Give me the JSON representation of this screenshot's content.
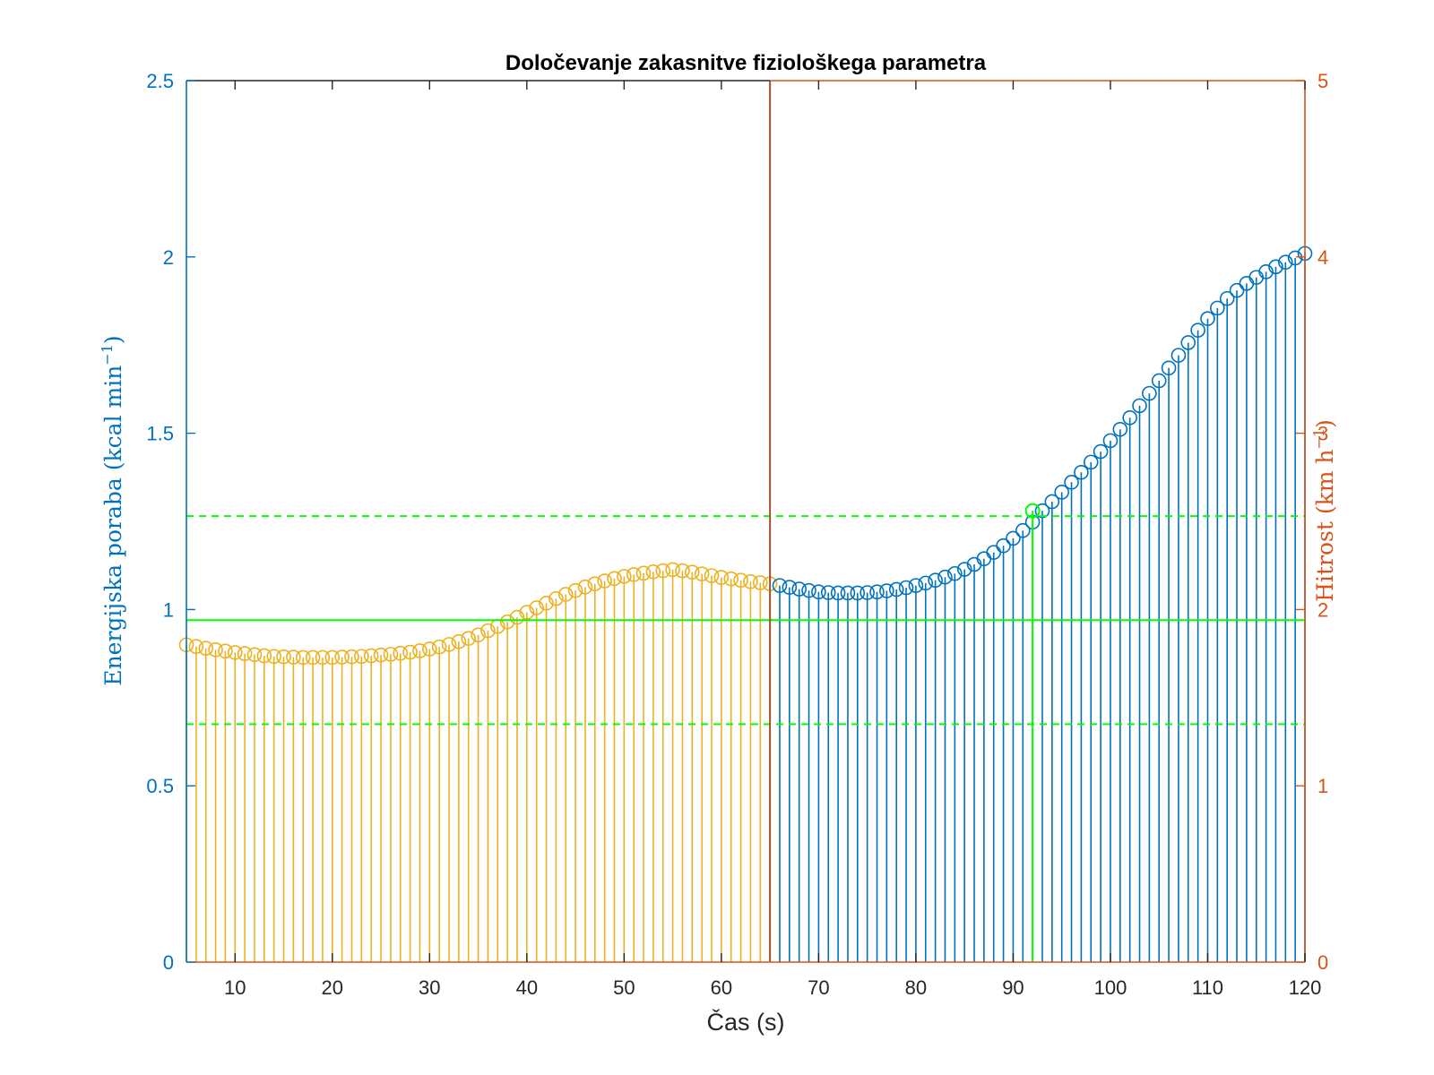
{
  "chart_data": {
    "type": "stem",
    "title": "Določevanje zakasnitve fiziološkega parametra",
    "xlabel": "Čas (s)",
    "ylabel_left": "Energijska poraba (kcal min",
    "ylabel_left_sup": "−1",
    "ylabel_left_close": ")",
    "ylabel_right": "Hitrost (km h",
    "ylabel_right_sup": "−1",
    "ylabel_right_close": ")",
    "xlim": [
      5,
      120
    ],
    "ylim_left": [
      0,
      2.5
    ],
    "ylim_right": [
      0,
      5
    ],
    "x_ticks": [
      10,
      20,
      30,
      40,
      50,
      60,
      70,
      80,
      90,
      100,
      110,
      120
    ],
    "x_tick_labels": [
      "10",
      "20",
      "30",
      "40",
      "50",
      "60",
      "70",
      "80",
      "90",
      "100",
      "110",
      "120"
    ],
    "y_left_ticks": [
      0,
      0.5,
      1,
      1.5,
      2,
      2.5
    ],
    "y_left_tick_labels": [
      "0",
      "0.5",
      "1",
      "1.5",
      "2",
      "2.5"
    ],
    "y_right_ticks": [
      0,
      1,
      2,
      3,
      4,
      5
    ],
    "y_right_tick_labels": [
      "0",
      "1",
      "2",
      "3",
      "4",
      "5"
    ],
    "grid": false,
    "colors": {
      "left_axis": "#0072BD",
      "right_axis": "#D95319",
      "series_before": "#EDB120",
      "series_after": "#0072BD",
      "markers": "#00FF00",
      "divider": "#A0522D",
      "text": "#262626"
    },
    "split_x": 65,
    "series": [
      {
        "x": [
          5,
          6,
          7,
          8,
          9,
          10,
          11,
          12,
          13,
          14,
          15,
          16,
          17,
          18,
          19,
          20,
          21,
          22,
          23,
          24,
          25,
          26,
          27,
          28,
          29,
          30,
          31,
          32,
          33,
          34,
          35,
          36,
          37,
          38,
          39,
          40,
          41,
          42,
          43,
          44,
          45,
          46,
          47,
          48,
          49,
          50,
          51,
          52,
          53,
          54,
          55,
          56,
          57,
          58,
          59,
          60,
          61,
          62,
          63,
          64,
          65,
          66,
          67,
          68,
          69,
          70,
          71,
          72,
          73,
          74,
          75,
          76,
          77,
          78,
          79,
          80,
          81,
          82,
          83,
          84,
          85,
          86,
          87,
          88,
          89,
          90,
          91,
          92,
          93,
          94,
          95,
          96,
          97,
          98,
          99,
          100,
          101,
          102,
          103,
          104,
          105,
          106,
          107,
          108,
          109,
          110,
          111,
          112,
          113,
          114,
          115,
          116,
          117,
          118,
          119,
          120
        ],
        "y": [
          0.9,
          0.895,
          0.89,
          0.886,
          0.882,
          0.878,
          0.875,
          0.872,
          0.869,
          0.867,
          0.866,
          0.865,
          0.864,
          0.864,
          0.864,
          0.864,
          0.865,
          0.866,
          0.867,
          0.869,
          0.871,
          0.873,
          0.876,
          0.879,
          0.883,
          0.888,
          0.894,
          0.901,
          0.909,
          0.918,
          0.928,
          0.94,
          0.952,
          0.965,
          0.978,
          0.992,
          1.005,
          1.018,
          1.031,
          1.043,
          1.054,
          1.064,
          1.073,
          1.081,
          1.088,
          1.094,
          1.099,
          1.103,
          1.107,
          1.11,
          1.113,
          1.11,
          1.106,
          1.101,
          1.096,
          1.091,
          1.087,
          1.083,
          1.079,
          1.076,
          1.073,
          1.068,
          1.063,
          1.058,
          1.054,
          1.05,
          1.048,
          1.047,
          1.047,
          1.047,
          1.048,
          1.05,
          1.053,
          1.057,
          1.062,
          1.068,
          1.075,
          1.083,
          1.092,
          1.102,
          1.114,
          1.128,
          1.144,
          1.162,
          1.181,
          1.202,
          1.224,
          1.248,
          1.28,
          1.306,
          1.333,
          1.361,
          1.389,
          1.418,
          1.448,
          1.479,
          1.511,
          1.544,
          1.578,
          1.613,
          1.649,
          1.685,
          1.721,
          1.757,
          1.792,
          1.825,
          1.855,
          1.882,
          1.905,
          1.925,
          1.942,
          1.958,
          1.972,
          1.985,
          1.997,
          2.01
        ]
      }
    ],
    "highlight_point": {
      "x": 92,
      "y": 1.28
    },
    "horizontal_lines": [
      {
        "y": 0.97,
        "style": "solid"
      },
      {
        "y": 1.265,
        "style": "dashed"
      },
      {
        "y": 0.675,
        "style": "dashed"
      }
    ],
    "vertical_marker_x": 92
  }
}
